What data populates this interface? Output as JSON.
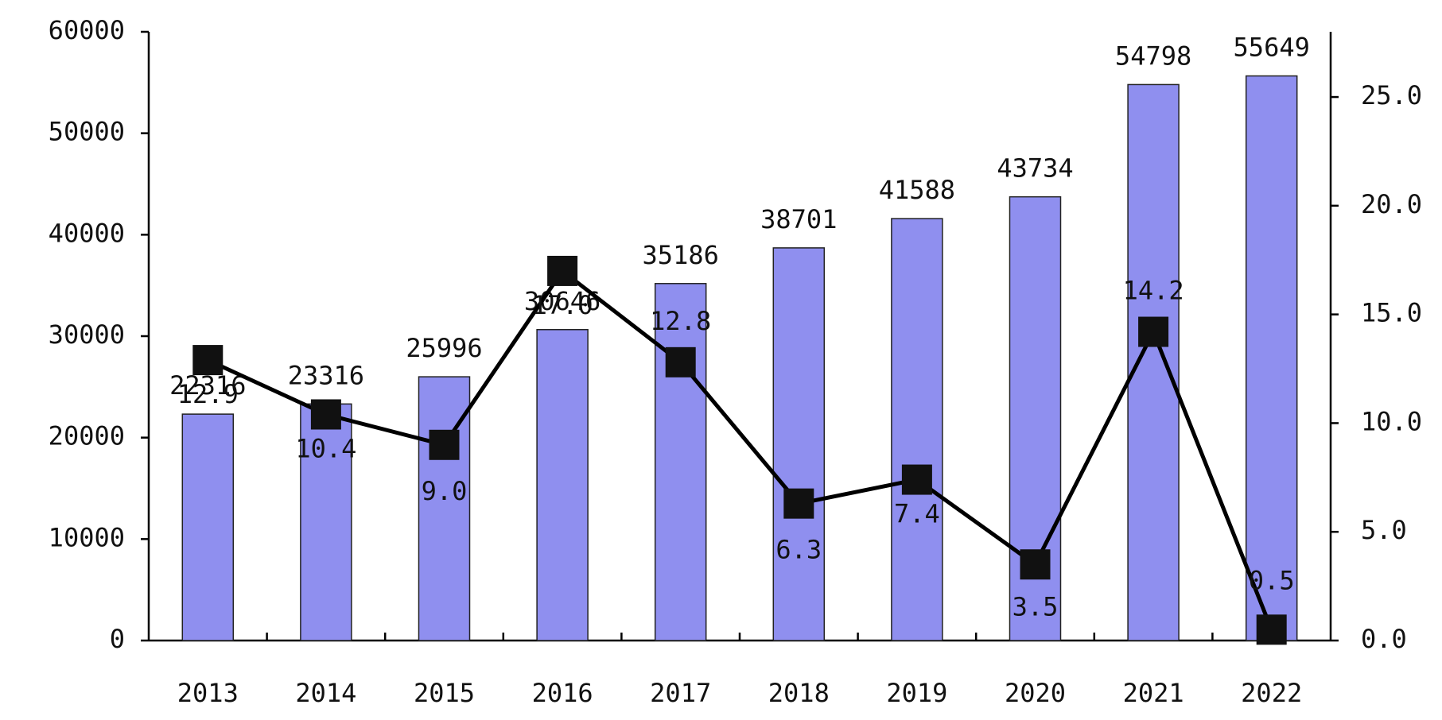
{
  "chart_data": {
    "type": "bar-line",
    "categories": [
      "2013",
      "2014",
      "2015",
      "2016",
      "2017",
      "2018",
      "2019",
      "2020",
      "2021",
      "2022"
    ],
    "series": [
      {
        "type": "bar",
        "color": "#8f8fef",
        "values": [
          22316,
          23316,
          25996,
          30646,
          35186,
          38701,
          41588,
          43734,
          54798,
          55649
        ]
      },
      {
        "type": "line",
        "axis": "y2",
        "color": "#000000",
        "values": [
          12.9,
          10.4,
          9.0,
          17.0,
          12.8,
          6.3,
          7.4,
          3.5,
          14.2,
          0.5
        ],
        "value_labels": [
          "12.9",
          "10.4",
          "9.0",
          "17.0",
          "12.8",
          "6.3",
          "7.4",
          "3.5",
          "14.2",
          "0.5"
        ]
      }
    ],
    "ylim": [
      0,
      60000
    ],
    "yticks": [
      0,
      10000,
      20000,
      30000,
      40000,
      50000,
      60000
    ],
    "y2lim": [
      0,
      28
    ],
    "y2ticks": [
      {
        "value": 0,
        "label": "0.0"
      },
      {
        "value": 5,
        "label": "5.0"
      },
      {
        "value": 10,
        "label": "10.0"
      },
      {
        "value": 15,
        "label": "15.0"
      },
      {
        "value": 20,
        "label": "20.0"
      },
      {
        "value": 25,
        "label": "25.0"
      }
    ],
    "grid": false
  }
}
